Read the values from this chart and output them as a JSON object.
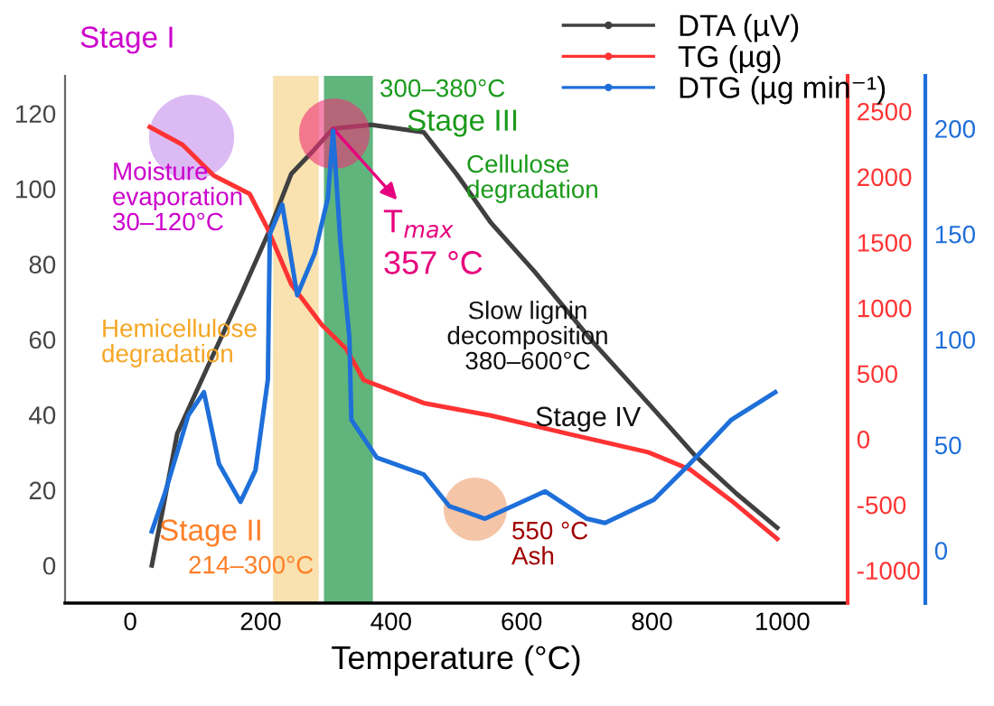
{
  "chart_data": {
    "type": "line",
    "xlabel": "Temperature (°C)",
    "xlim": [
      -100,
      1100
    ],
    "xticks": [
      0,
      200,
      400,
      600,
      800,
      1000
    ],
    "ylim": [
      -10,
      130
    ],
    "yticks": [
      0,
      20,
      40,
      60,
      80,
      100,
      120
    ],
    "y2lim": [
      -1250,
      2770
    ],
    "y2ticks": [
      -1000,
      -500,
      0,
      500,
      1000,
      1500,
      2000,
      2500
    ],
    "y3lim": [
      -25,
      225
    ],
    "y3ticks": [
      0,
      50,
      100,
      150,
      200
    ],
    "grid": false,
    "legend": "top right",
    "series": [
      {
        "name": "DTA (µV)",
        "color": "#404040",
        "axis": "y",
        "x": [
          33,
          50,
          72,
          122,
          170,
          211,
          247,
          280,
          311,
          370,
          450,
          500,
          553,
          620,
          711,
          800,
          867,
          930,
          992
        ],
        "values": [
          0,
          15,
          35,
          54,
          72,
          88,
          104,
          110,
          116,
          117,
          115,
          104,
          91,
          78,
          59,
          42,
          29,
          19,
          10
        ]
      },
      {
        "name": "TG (µg)",
        "color": "#ff3333",
        "axis": "y2",
        "x": [
          30,
          80,
          128,
          183,
          211,
          247,
          294,
          331,
          358,
          450,
          553,
          672,
          794,
          858,
          922,
          992
        ],
        "values": [
          2380,
          2245,
          2010,
          1870,
          1600,
          1180,
          870,
          690,
          450,
          275,
          180,
          40,
          -100,
          -230,
          -470,
          -760
        ]
      },
      {
        "name": "DTG (µg min⁻¹)",
        "color": "#1e6fd9",
        "axis": "y3",
        "x": [
          33,
          53,
          89,
          113,
          136,
          169,
          192,
          211,
          214,
          233,
          256,
          283,
          303,
          311,
          322,
          336,
          339,
          378,
          450,
          489,
          544,
          636,
          700,
          728,
          803,
          858,
          922,
          989
        ],
        "values": [
          9,
          27,
          64,
          75,
          41,
          23,
          38,
          81,
          150,
          164,
          121,
          141,
          167,
          199,
          147,
          101,
          62,
          44,
          36,
          21,
          15,
          28,
          15,
          13,
          24,
          41,
          62,
          75
        ]
      }
    ],
    "bands": [
      {
        "axis": "x",
        "from": 219,
        "to": 289,
        "color": "#f9e2b0"
      },
      {
        "axis": "x",
        "from": 297,
        "to": 372,
        "color": "#5fb57c"
      }
    ],
    "annotations": [
      "Stage I",
      "Moisture\nevaporation\n30–120°C",
      "Hemicellulose\ndegradation",
      "Stage II",
      "214–300°C",
      "300–380°C",
      "Stage III",
      "Cellulose\ndegradation",
      {
        "text": "T$_{max}$",
        "x": 311,
        "y": 116
      },
      "357 °C",
      "Slow lignin\ndecomposition\n380–600°C",
      "Stage IV",
      "550 °C\nAsh"
    ]
  }
}
